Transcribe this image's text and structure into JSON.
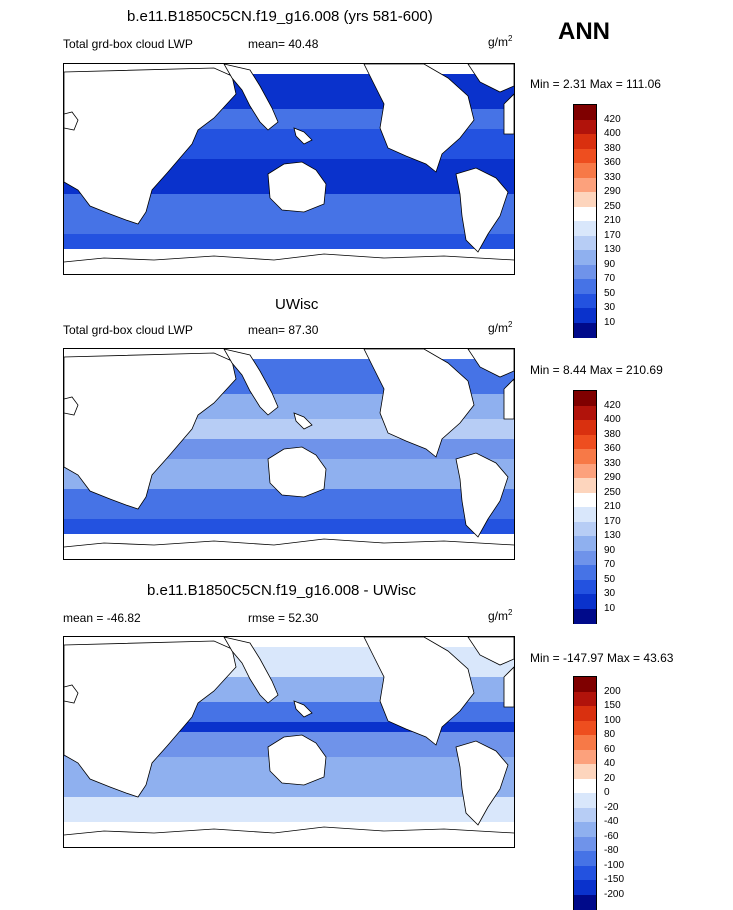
{
  "season": "ANN",
  "panels": [
    {
      "title": "b.e11.B1850C5CN.f19_g16.008 (yrs 581-600)",
      "left_label": "Total grd-box cloud LWP",
      "center_label": "mean=  40.48",
      "units_base": "g/m",
      "units_exp": "2",
      "minmax": "Min =   2.31 Max = 111.06",
      "levels": [
        "420",
        "400",
        "380",
        "360",
        "330",
        "290",
        "250",
        "210",
        "170",
        "130",
        "90",
        "70",
        "50",
        "30",
        "10"
      ],
      "colors": [
        "#7f0000",
        "#b1130b",
        "#d9300f",
        "#ee4e1f",
        "#f77947",
        "#fca17c",
        "#fdd5bd",
        "#ffffff",
        "#d9e7fb",
        "#b7cdf5",
        "#8fb0ef",
        "#6f93ea",
        "#4673e6",
        "#2352e0",
        "#0a32cc",
        "#000a8a"
      ],
      "map_fill": "ocean_low"
    },
    {
      "title": "UWisc",
      "left_label": "Total grd-box cloud LWP",
      "center_label": "mean=  87.30",
      "units_base": "g/m",
      "units_exp": "2",
      "minmax": "Min =   8.44 Max = 210.69",
      "levels": [
        "420",
        "400",
        "380",
        "360",
        "330",
        "290",
        "250",
        "210",
        "170",
        "130",
        "90",
        "70",
        "50",
        "30",
        "10"
      ],
      "colors": [
        "#7f0000",
        "#b1130b",
        "#d9300f",
        "#ee4e1f",
        "#f77947",
        "#fca17c",
        "#fdd5bd",
        "#ffffff",
        "#d9e7fb",
        "#b7cdf5",
        "#8fb0ef",
        "#6f93ea",
        "#4673e6",
        "#2352e0",
        "#0a32cc",
        "#000a8a"
      ],
      "map_fill": "ocean_mid"
    },
    {
      "title": "b.e11.B1850C5CN.f19_g16.008 - UWisc",
      "left_label": "mean = -46.82",
      "center_label": "rmse =  52.30",
      "units_base": "g/m",
      "units_exp": "2",
      "minmax": "Min = -147.97 Max =  43.63",
      "levels": [
        "200",
        "150",
        "100",
        "80",
        "60",
        "40",
        "20",
        "0",
        "-20",
        "-40",
        "-60",
        "-80",
        "-100",
        "-150",
        "-200"
      ],
      "colors": [
        "#7f0000",
        "#b1130b",
        "#d9300f",
        "#ee4e1f",
        "#f77947",
        "#fca17c",
        "#fdd5bd",
        "#ffffff",
        "#d9e7fb",
        "#b7cdf5",
        "#8fb0ef",
        "#6f93ea",
        "#4673e6",
        "#2352e0",
        "#0a32cc",
        "#000a8a"
      ],
      "map_fill": "diff"
    }
  ]
}
